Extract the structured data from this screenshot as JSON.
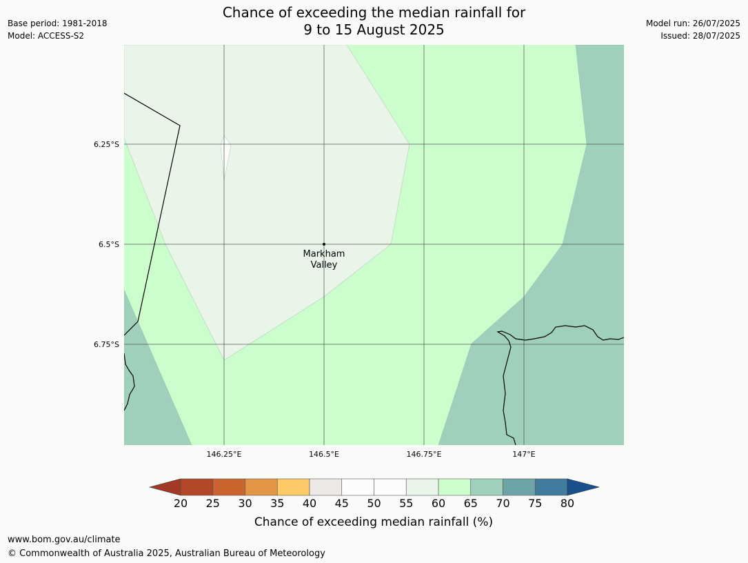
{
  "header": {
    "title_line1": "Chance of exceeding the median rainfall for",
    "title_line2": "9 to 15 August 2025",
    "base_period": "Base period: 1981-2018",
    "model": "Model: ACCESS-S2",
    "model_run": "Model run: 26/07/2025",
    "issued": "Issued: 28/07/2025"
  },
  "map": {
    "lat_ticks": [
      "6.25°S",
      "6.5°S",
      "6.75°S"
    ],
    "lon_ticks": [
      "146.25°E",
      "146.5°E",
      "146.75°E",
      "147°E"
    ],
    "place": {
      "name_line1": "Markham",
      "name_line2": "Valley"
    },
    "zone_colors": {
      "55_60": "#eaf5ea",
      "60_65": "#ccfdcc",
      "65_70": "#9ed0bb",
      "50_55": "#fbfdfb"
    }
  },
  "colorbar": {
    "title": "Chance of exceeding median rainfall (%)",
    "labels": [
      "20",
      "25",
      "30",
      "35",
      "40",
      "45",
      "50",
      "55",
      "60",
      "65",
      "70",
      "75",
      "80"
    ],
    "colors": [
      "#a23a27",
      "#b3472a",
      "#cc6430",
      "#e29545",
      "#fdc966",
      "#ece8e6",
      "#fcfcfc",
      "#fcfcfc",
      "#eaf5ea",
      "#ccfdcc",
      "#9ed0bb",
      "#6ea4a7",
      "#417b9e",
      "#184f8d"
    ]
  },
  "footer": {
    "url": "www.bom.gov.au/climate",
    "copyright": "© Commonwealth of Australia 2025, Australian Bureau of Meteorology"
  }
}
